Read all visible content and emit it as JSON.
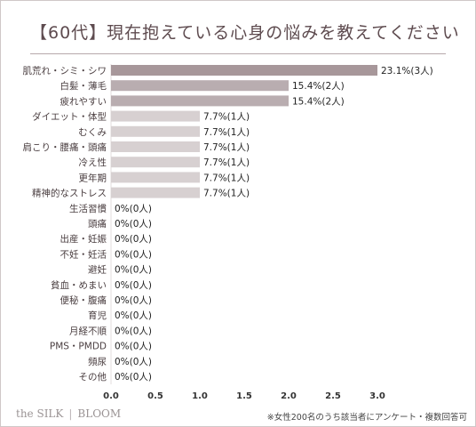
{
  "chart_data": {
    "type": "bar",
    "orientation": "horizontal",
    "title": "【60代】現在抱えている心身の悩みを教えてください",
    "categories": [
      "肌荒れ・シミ・シワ",
      "白髪・薄毛",
      "疲れやすい",
      "ダイエット・体型",
      "むくみ",
      "肩こり・腰痛・頭痛",
      "冷え性",
      "更年期",
      "精神的なストレス",
      "生活習慣",
      "頭痛",
      "出産・妊娠",
      "不妊・妊活",
      "避妊",
      "貧血・めまい",
      "便秘・腹痛",
      "育児",
      "月経不順",
      "PMS・PMDD",
      "頻尿",
      "その他"
    ],
    "values": [
      3,
      2,
      2,
      1,
      1,
      1,
      1,
      1,
      1,
      0,
      0,
      0,
      0,
      0,
      0,
      0,
      0,
      0,
      0,
      0,
      0
    ],
    "labels": [
      "23.1%(3人)",
      "15.4%(2人)",
      "15.4%(2人)",
      "7.7%(1人)",
      "7.7%(1人)",
      "7.7%(1人)",
      "7.7%(1人)",
      "7.7%(1人)",
      "7.7%(1人)",
      "0%(0人)",
      "0%(0人)",
      "0%(0人)",
      "0%(0人)",
      "0%(0人)",
      "0%(0人)",
      "0%(0人)",
      "0%(0人)",
      "0%(0人)",
      "0%(0人)",
      "0%(0人)",
      "0%(0人)"
    ],
    "xlim": [
      0,
      3.0
    ],
    "xticks": [
      "0.0",
      "0.5",
      "1.0",
      "1.5",
      "2.0",
      "2.5",
      "3.0"
    ],
    "colors": {
      "top": "#a7979a",
      "second": "#b9adb0",
      "other": "#d7d0d1",
      "text": "#4a3e40"
    }
  },
  "footer": {
    "brand_left": "the SILK",
    "brand_right": "BLOOM",
    "note": "※女性200名のうち該当者にアンケート・複数回答可"
  }
}
